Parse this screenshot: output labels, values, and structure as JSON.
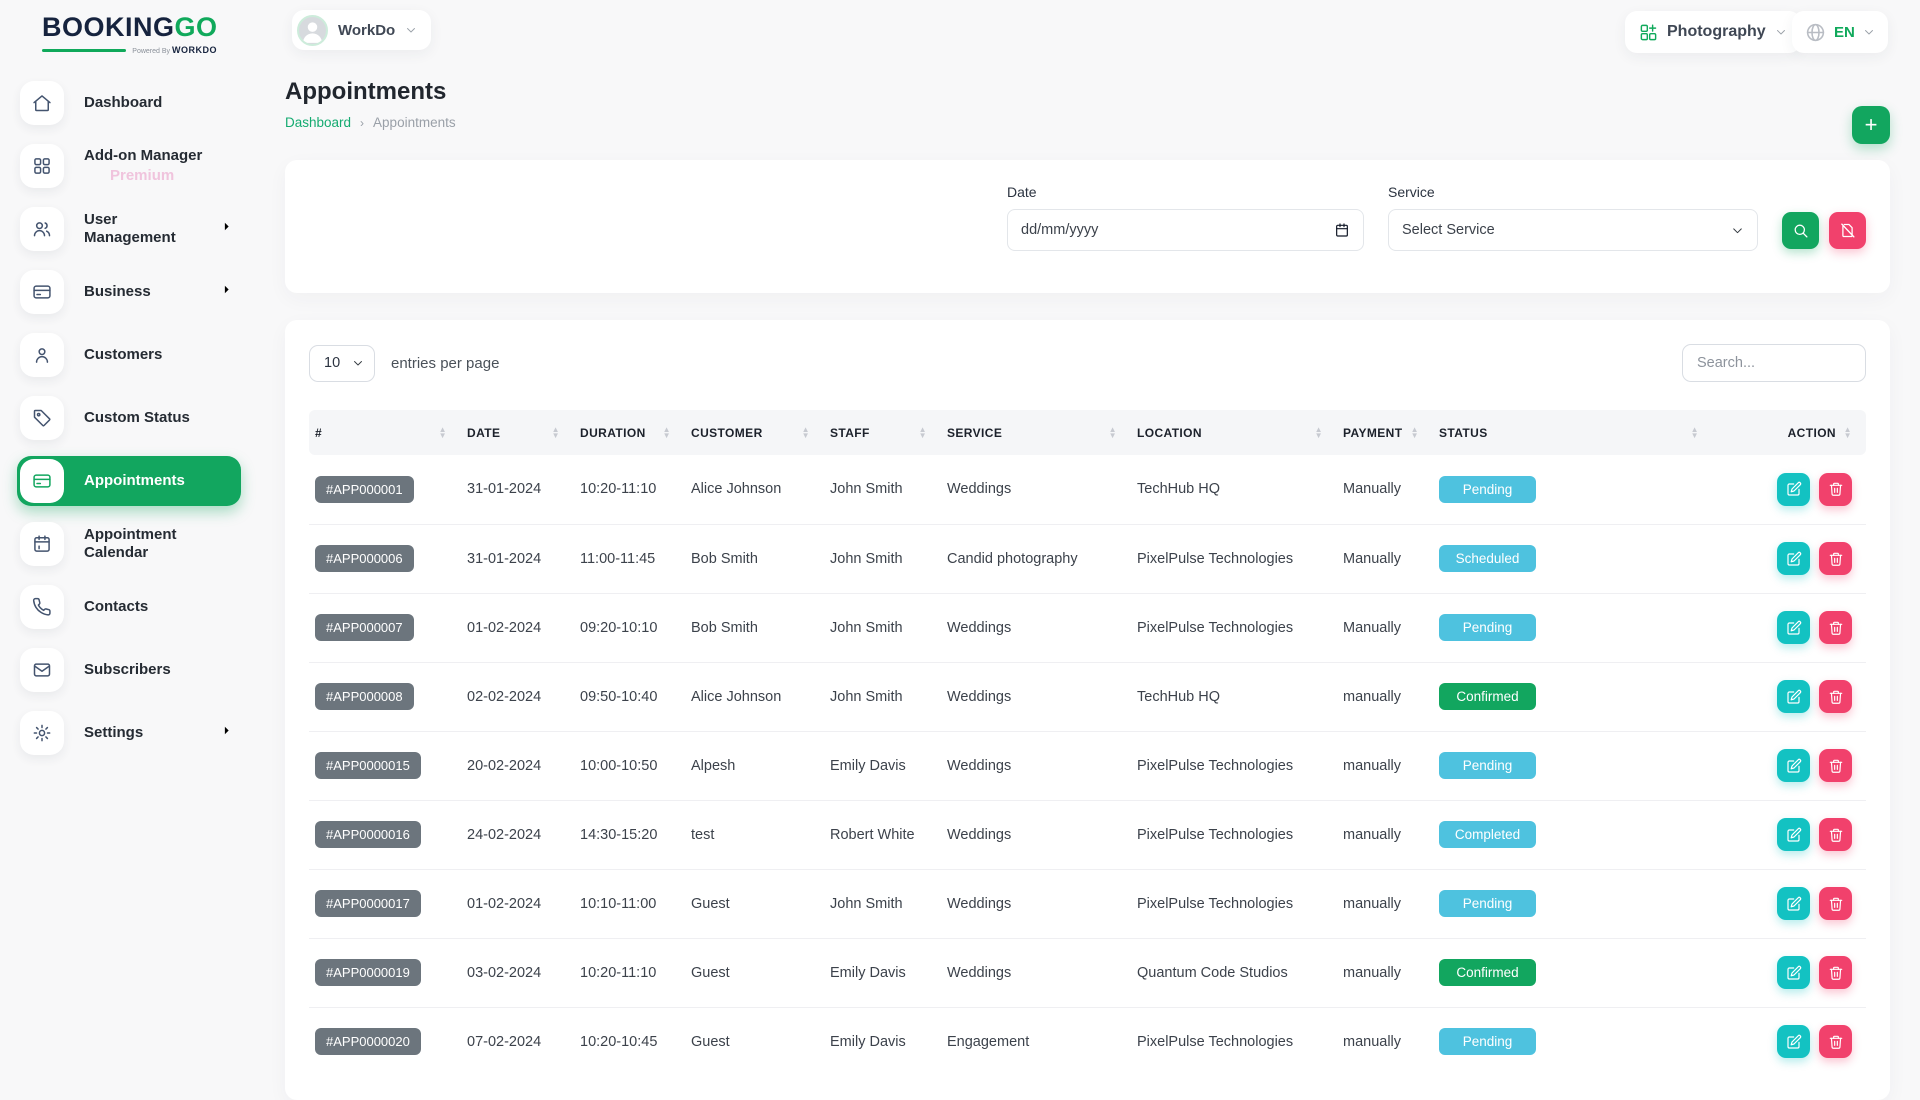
{
  "brand": {
    "name_primary": "BOOKING",
    "name_secondary": "GO",
    "powered_by": "Powered By",
    "powered_brand": "WORKDO"
  },
  "topbar": {
    "workspace": "WorkDo",
    "module": "Photography",
    "language": "EN"
  },
  "sidebar": {
    "items": [
      {
        "label": "Dashboard",
        "icon": "home",
        "chevron": false,
        "active": false
      },
      {
        "label": "Add-on Manager",
        "sub": "Premium",
        "icon": "grid",
        "chevron": false,
        "active": false
      },
      {
        "label": "User Management",
        "icon": "users",
        "chevron": true,
        "active": false
      },
      {
        "label": "Business",
        "icon": "credit-card",
        "chevron": true,
        "active": false
      },
      {
        "label": "Customers",
        "icon": "user",
        "chevron": false,
        "active": false
      },
      {
        "label": "Custom Status",
        "icon": "tag",
        "chevron": false,
        "active": false
      },
      {
        "label": "Appointments",
        "icon": "credit-card",
        "chevron": false,
        "active": true
      },
      {
        "label": "Appointment Calendar",
        "icon": "calendar",
        "chevron": false,
        "active": false
      },
      {
        "label": "Contacts",
        "icon": "phone",
        "chevron": false,
        "active": false
      },
      {
        "label": "Subscribers",
        "icon": "mail",
        "chevron": false,
        "active": false
      },
      {
        "label": "Settings",
        "icon": "gear",
        "chevron": true,
        "active": false
      }
    ]
  },
  "page": {
    "title": "Appointments",
    "breadcrumb_home": "Dashboard",
    "breadcrumb_current": "Appointments",
    "add_label": "+"
  },
  "filters": {
    "date_label": "Date",
    "date_placeholder": "dd/mm/yyyy",
    "service_label": "Service",
    "service_value": "Select Service"
  },
  "table": {
    "entries_value": "10",
    "entries_label": "entries per page",
    "search_placeholder": "Search...",
    "columns": [
      "#",
      "DATE",
      "DURATION",
      "CUSTOMER",
      "STAFF",
      "SERVICE",
      "LOCATION",
      "PAYMENT",
      "STATUS",
      "ACTION"
    ],
    "rows": [
      {
        "id": "#APP000001",
        "date": "31-01-2024",
        "duration": "10:20-11:10",
        "customer": "Alice Johnson",
        "staff": "John Smith",
        "service": "Weddings",
        "location": "TechHub HQ",
        "payment": "Manually",
        "status": "Pending",
        "status_color": "blue"
      },
      {
        "id": "#APP000006",
        "date": "31-01-2024",
        "duration": "11:00-11:45",
        "customer": "Bob Smith",
        "staff": "John Smith",
        "service": "Candid photography",
        "location": "PixelPulse Technologies",
        "payment": "Manually",
        "status": "Scheduled",
        "status_color": "blue"
      },
      {
        "id": "#APP000007",
        "date": "01-02-2024",
        "duration": "09:20-10:10",
        "customer": "Bob Smith",
        "staff": "John Smith",
        "service": "Weddings",
        "location": "PixelPulse Technologies",
        "payment": "Manually",
        "status": "Pending",
        "status_color": "blue"
      },
      {
        "id": "#APP000008",
        "date": "02-02-2024",
        "duration": "09:50-10:40",
        "customer": "Alice Johnson",
        "staff": "John Smith",
        "service": "Weddings",
        "location": "TechHub HQ",
        "payment": "manually",
        "status": "Confirmed",
        "status_color": "green"
      },
      {
        "id": "#APP0000015",
        "date": "20-02-2024",
        "duration": "10:00-10:50",
        "customer": "Alpesh",
        "staff": "Emily Davis",
        "service": "Weddings",
        "location": "PixelPulse Technologies",
        "payment": "manually",
        "status": "Pending",
        "status_color": "blue"
      },
      {
        "id": "#APP0000016",
        "date": "24-02-2024",
        "duration": "14:30-15:20",
        "customer": "test",
        "staff": "Robert White",
        "service": "Weddings",
        "location": "PixelPulse Technologies",
        "payment": "manually",
        "status": "Completed",
        "status_color": "blue"
      },
      {
        "id": "#APP0000017",
        "date": "01-02-2024",
        "duration": "10:10-11:00",
        "customer": "Guest",
        "staff": "John Smith",
        "service": "Weddings",
        "location": "PixelPulse Technologies",
        "payment": "manually",
        "status": "Pending",
        "status_color": "blue"
      },
      {
        "id": "#APP0000019",
        "date": "03-02-2024",
        "duration": "10:20-11:10",
        "customer": "Guest",
        "staff": "Emily Davis",
        "service": "Weddings",
        "location": "Quantum Code Studios",
        "payment": "manually",
        "status": "Confirmed",
        "status_color": "green"
      },
      {
        "id": "#APP0000020",
        "date": "07-02-2024",
        "duration": "10:20-10:45",
        "customer": "Guest",
        "staff": "Emily Davis",
        "service": "Engagement",
        "location": "PixelPulse Technologies",
        "payment": "manually",
        "status": "Pending",
        "status_color": "blue"
      }
    ]
  },
  "colors": {
    "primary_green": "#12a65f",
    "badge_blue": "#4ec2df",
    "badge_green": "#12a65f",
    "danger_pink": "#f1416c",
    "edit_teal": "#13c2c2",
    "id_gray": "#6c757d"
  }
}
